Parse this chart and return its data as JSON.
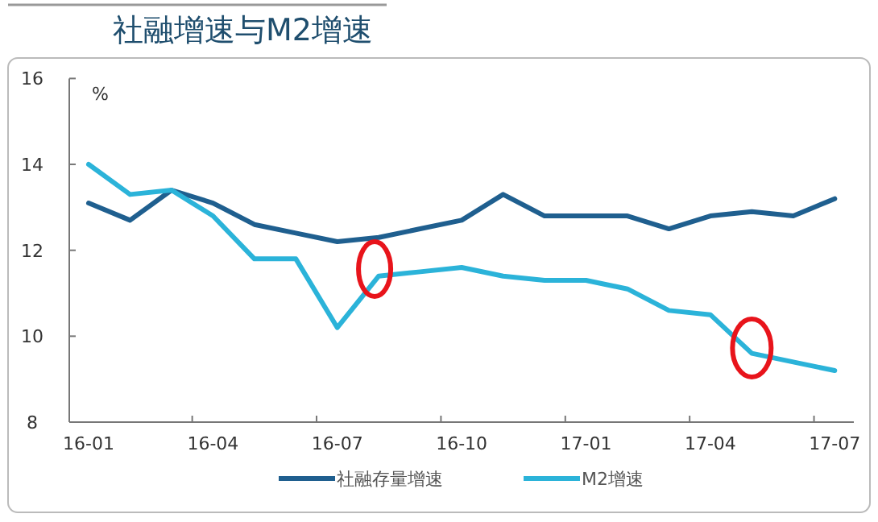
{
  "chart_data": {
    "type": "line",
    "title": "社融增速与M2增速",
    "ylabel": "%",
    "categories": [
      "16-01",
      null,
      null,
      "16-04",
      null,
      null,
      "16-07",
      null,
      null,
      "16-10",
      null,
      null,
      "17-01",
      null,
      null,
      "17-04",
      null,
      null,
      "17-07"
    ],
    "series": [
      {
        "name": "社融存量增速",
        "color": "#1f5f8f",
        "values": [
          13.1,
          12.7,
          13.4,
          13.1,
          12.6,
          12.4,
          12.2,
          12.3,
          12.5,
          12.7,
          13.3,
          12.8,
          12.8,
          12.8,
          12.5,
          12.8,
          12.9,
          12.8,
          13.2
        ]
      },
      {
        "name": "M2增速",
        "color": "#2bb3d9",
        "values": [
          14.0,
          13.3,
          13.4,
          12.8,
          11.8,
          11.8,
          10.2,
          11.4,
          11.5,
          11.6,
          11.4,
          11.3,
          11.3,
          11.1,
          10.6,
          10.5,
          9.6,
          9.4,
          9.2
        ]
      }
    ],
    "ylim": [
      8,
      16
    ],
    "yticks": [
      8,
      10,
      12,
      14,
      16
    ],
    "grid": false,
    "legend": "bottom",
    "marker": "none",
    "line_style": "solid"
  }
}
